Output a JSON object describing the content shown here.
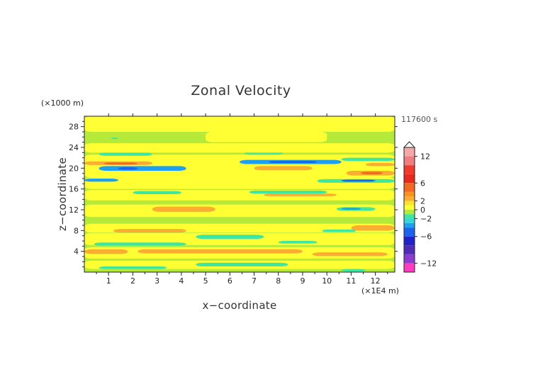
{
  "chart_data": {
    "type": "heatmap",
    "title": "Zonal Velocity",
    "time_label": "117600 s",
    "xlabel": "x−coordinate",
    "ylabel": "z−coordinate",
    "x_unit": "(×1E4 m)",
    "y_unit": "(×1000 m)",
    "xlim": [
      0,
      12.8
    ],
    "ylim": [
      0,
      30
    ],
    "x_ticks": [
      1,
      2,
      3,
      4,
      5,
      6,
      7,
      8,
      9,
      10,
      11,
      12
    ],
    "x_tick_labels": [
      "1",
      "2",
      "3",
      "4",
      "5",
      "6",
      "7",
      "8",
      "9",
      "10",
      "11",
      "12"
    ],
    "y_ticks": [
      4,
      8,
      12,
      16,
      20,
      24,
      28
    ],
    "y_tick_labels": [
      "4",
      "8",
      "12",
      "16",
      "20",
      "24",
      "28"
    ],
    "colorbar": {
      "tick_values": [
        12,
        6,
        2,
        0,
        -2,
        -6,
        -12
      ],
      "tick_labels": [
        "12",
        "6",
        "2",
        "0",
        "−2",
        "−6",
        "−12"
      ],
      "levels": [
        {
          "from": 12,
          "to": 14,
          "color": "#f5a8a8"
        },
        {
          "from": 10,
          "to": 12,
          "color": "#f07e7e"
        },
        {
          "from": 8,
          "to": 10,
          "color": "#ef3b2c"
        },
        {
          "from": 6,
          "to": 8,
          "color": "#e9281f"
        },
        {
          "from": 4,
          "to": 6,
          "color": "#f26a21"
        },
        {
          "from": 3,
          "to": 4,
          "color": "#f7941d"
        },
        {
          "from": 2,
          "to": 3,
          "color": "#f9ae31"
        },
        {
          "from": 1,
          "to": 2,
          "color": "#fbe233"
        },
        {
          "from": 0,
          "to": 1,
          "color": "#ffff33"
        },
        {
          "from": -1,
          "to": 0,
          "color": "#b6ea3a"
        },
        {
          "from": -2,
          "to": -1,
          "color": "#3ee6a0"
        },
        {
          "from": -3,
          "to": -2,
          "color": "#33d6e0"
        },
        {
          "from": -4,
          "to": -3,
          "color": "#1e9ff0"
        },
        {
          "from": -6,
          "to": -4,
          "color": "#1c64ee"
        },
        {
          "from": -8,
          "to": -6,
          "color": "#2222cc"
        },
        {
          "from": -10,
          "to": -8,
          "color": "#4f2bb8"
        },
        {
          "from": -12,
          "to": -10,
          "color": "#8b3bd0"
        },
        {
          "from": -14,
          "to": -12,
          "color": "#ff3cbf"
        }
      ]
    },
    "background_value": -0.5,
    "regions": [
      {
        "value": 0.6,
        "x": [
          0.0,
          12.8
        ],
        "z": [
          0.6,
          2.2
        ]
      },
      {
        "value": -1.6,
        "x": [
          0.6,
          3.4
        ],
        "z": [
          0.6,
          1.1
        ]
      },
      {
        "value": -1.6,
        "x": [
          4.6,
          8.4
        ],
        "z": [
          1.1,
          1.8
        ]
      },
      {
        "value": -1.6,
        "x": [
          10.6,
          11.6
        ],
        "z": [
          0.1,
          0.6
        ]
      },
      {
        "value": 0.6,
        "x": [
          0.0,
          12.8
        ],
        "z": [
          2.6,
          4.8
        ]
      },
      {
        "value": 2.5,
        "x": [
          0.0,
          1.8
        ],
        "z": [
          3.5,
          4.4
        ]
      },
      {
        "value": 2.5,
        "x": [
          2.2,
          9.0
        ],
        "z": [
          3.6,
          4.4
        ]
      },
      {
        "value": 2.5,
        "x": [
          9.4,
          12.5
        ],
        "z": [
          3.1,
          3.8
        ]
      },
      {
        "value": 0.6,
        "x": [
          0.0,
          12.8
        ],
        "z": [
          5.2,
          7.5
        ]
      },
      {
        "value": -1.6,
        "x": [
          0.4,
          4.2
        ],
        "z": [
          5.1,
          5.7
        ]
      },
      {
        "value": -1.6,
        "x": [
          4.6,
          7.4
        ],
        "z": [
          6.4,
          7.2
        ]
      },
      {
        "value": -1.6,
        "x": [
          8.0,
          9.6
        ],
        "z": [
          5.5,
          6.0
        ]
      },
      {
        "value": 0.6,
        "x": [
          0.0,
          12.8
        ],
        "z": [
          7.6,
          9.3
        ]
      },
      {
        "value": 2.5,
        "x": [
          1.2,
          4.2
        ],
        "z": [
          7.6,
          8.3
        ]
      },
      {
        "value": 2.5,
        "x": [
          11.0,
          12.8
        ],
        "z": [
          8.0,
          9.0
        ]
      },
      {
        "value": -1.6,
        "x": [
          9.8,
          11.2
        ],
        "z": [
          7.7,
          8.2
        ]
      },
      {
        "value": 0.6,
        "x": [
          0.0,
          12.8
        ],
        "z": [
          10.6,
          13.0
        ]
      },
      {
        "value": 2.5,
        "x": [
          2.8,
          5.4
        ],
        "z": [
          11.6,
          12.6
        ]
      },
      {
        "value": -1.6,
        "x": [
          10.4,
          12.0
        ],
        "z": [
          11.8,
          12.5
        ]
      },
      {
        "value": -3.5,
        "x": [
          10.6,
          11.4
        ],
        "z": [
          12.0,
          12.4
        ]
      },
      {
        "value": 0.6,
        "x": [
          0.0,
          12.8
        ],
        "z": [
          13.8,
          15.8
        ]
      },
      {
        "value": -1.6,
        "x": [
          2.0,
          4.0
        ],
        "z": [
          15.0,
          15.6
        ]
      },
      {
        "value": -1.6,
        "x": [
          6.8,
          10.0
        ],
        "z": [
          15.1,
          15.7
        ]
      },
      {
        "value": 2.5,
        "x": [
          7.4,
          10.4
        ],
        "z": [
          14.6,
          15.1
        ]
      },
      {
        "value": 2.5,
        "x": [
          0.8,
          3.0
        ],
        "z": [
          16.2,
          16.8
        ]
      },
      {
        "value": 2.5,
        "x": [
          4.0,
          8.2
        ],
        "z": [
          16.8,
          17.5
        ]
      },
      {
        "value": 0.6,
        "x": [
          0.0,
          12.8
        ],
        "z": [
          16.0,
          18.2
        ]
      },
      {
        "value": -3.5,
        "x": [
          0.0,
          1.4
        ],
        "z": [
          17.4,
          18.0
        ]
      },
      {
        "value": -1.6,
        "x": [
          9.6,
          12.8
        ],
        "z": [
          17.2,
          17.9
        ]
      },
      {
        "value": -5.0,
        "x": [
          10.6,
          12.0
        ],
        "z": [
          17.4,
          17.8
        ]
      },
      {
        "value": 0.6,
        "x": [
          0.0,
          12.8
        ],
        "z": [
          18.2,
          22.6
        ]
      },
      {
        "value": -3.5,
        "x": [
          0.6,
          4.2
        ],
        "z": [
          19.5,
          20.4
        ]
      },
      {
        "value": -5.0,
        "x": [
          1.4,
          2.2
        ],
        "z": [
          19.7,
          20.2
        ]
      },
      {
        "value": 2.5,
        "x": [
          0.0,
          2.8
        ],
        "z": [
          20.6,
          21.3
        ]
      },
      {
        "value": 5.0,
        "x": [
          0.8,
          2.2
        ],
        "z": [
          20.7,
          21.1
        ]
      },
      {
        "value": 2.5,
        "x": [
          10.8,
          12.8
        ],
        "z": [
          18.6,
          19.5
        ]
      },
      {
        "value": 5.0,
        "x": [
          11.4,
          12.3
        ],
        "z": [
          18.8,
          19.3
        ]
      },
      {
        "value": 2.5,
        "x": [
          7.0,
          9.4
        ],
        "z": [
          19.6,
          20.4
        ]
      },
      {
        "value": -3.5,
        "x": [
          6.4,
          10.6
        ],
        "z": [
          20.8,
          21.6
        ]
      },
      {
        "value": -5.0,
        "x": [
          7.6,
          9.6
        ],
        "z": [
          21.0,
          21.4
        ]
      },
      {
        "value": -1.6,
        "x": [
          10.6,
          12.8
        ],
        "z": [
          21.4,
          22.0
        ]
      },
      {
        "value": 2.5,
        "x": [
          11.6,
          12.8
        ],
        "z": [
          20.4,
          21.0
        ]
      },
      {
        "value": 2.5,
        "x": [
          8.6,
          10.4
        ],
        "z": [
          23.2,
          24.0
        ]
      },
      {
        "value": -1.6,
        "x": [
          0.6,
          2.8
        ],
        "z": [
          22.4,
          23.0
        ]
      },
      {
        "value": -1.6,
        "x": [
          6.6,
          8.2
        ],
        "z": [
          22.6,
          23.1
        ]
      },
      {
        "value": 0.6,
        "x": [
          0.0,
          12.8
        ],
        "z": [
          23.0,
          24.8
        ]
      },
      {
        "value": 0.6,
        "x": [
          0.0,
          12.8
        ],
        "z": [
          27.0,
          30.0
        ]
      },
      {
        "value": 0.6,
        "x": [
          5.0,
          10.0
        ],
        "z": [
          25.0,
          27.0
        ]
      },
      {
        "value": -1.6,
        "x": [
          1.1,
          1.4
        ],
        "z": [
          25.6,
          25.9
        ]
      }
    ]
  }
}
